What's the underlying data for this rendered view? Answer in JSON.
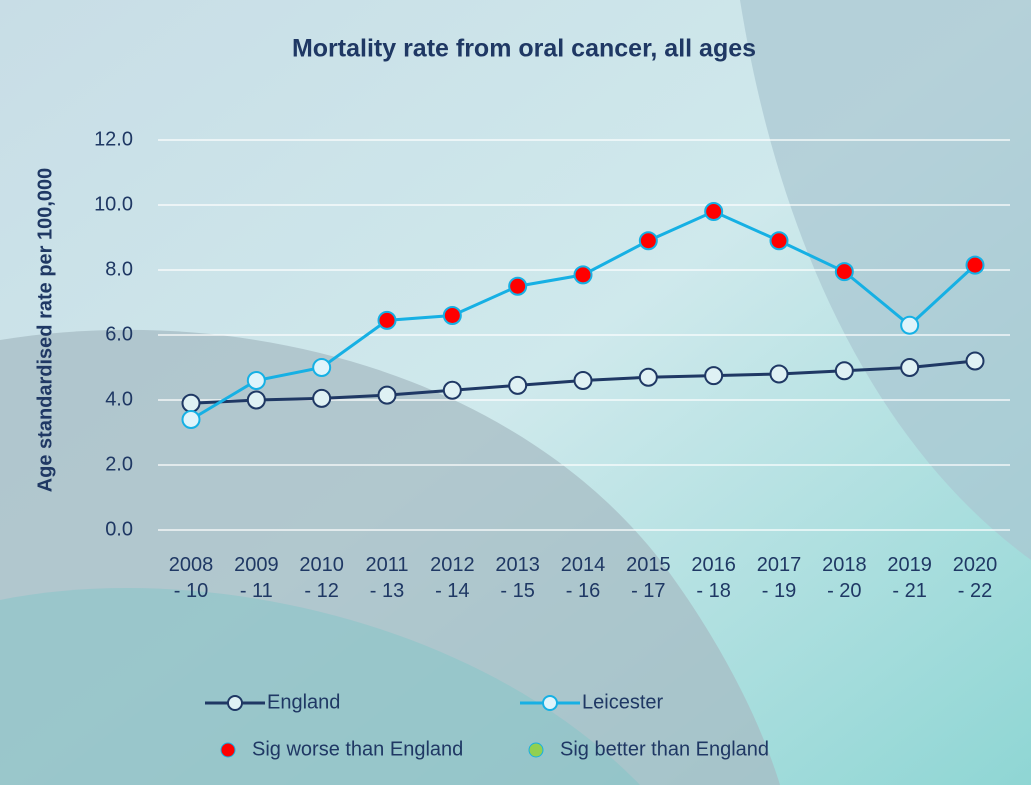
{
  "chart_data": {
    "type": "line",
    "title": "Mortality rate from oral cancer, all ages",
    "y_label": "Age standardised rate per 100,000",
    "categories": [
      "2008 - 10",
      "2009 - 11",
      "2010 - 12",
      "2011 - 13",
      "2012 - 14",
      "2013 - 15",
      "2014 - 16",
      "2015 - 17",
      "2016 - 18",
      "2017 - 19",
      "2018 - 20",
      "2019 - 21",
      "2020 - 22"
    ],
    "series": [
      {
        "name": "England",
        "color": "#1f3864",
        "marker_fill": "#dff1f4",
        "values": [
          3.9,
          4.0,
          4.05,
          4.15,
          4.3,
          4.45,
          4.6,
          4.7,
          4.75,
          4.8,
          4.9,
          5.0,
          5.2
        ]
      },
      {
        "name": "Leicester",
        "color": "#16b0e4",
        "marker_fill": "#dff4fb",
        "values": [
          3.4,
          4.6,
          5.0,
          6.45,
          6.6,
          7.5,
          7.85,
          8.9,
          9.8,
          8.9,
          7.95,
          6.3,
          8.15
        ],
        "marker_colors": [
          "#dff4fb",
          "#dff4fb",
          "#dff4fb",
          "#ff0000",
          "#ff0000",
          "#ff0000",
          "#ff0000",
          "#ff0000",
          "#ff0000",
          "#ff0000",
          "#ff0000",
          "#dff4fb",
          "#ff0000"
        ]
      }
    ],
    "markers": [
      {
        "name": "Sig worse than England",
        "color": "#ff0000"
      },
      {
        "name": "Sig better than England",
        "color": "#92d050"
      }
    ],
    "ylim": [
      0,
      12
    ],
    "yticks": [
      {
        "value": 0,
        "label": "0.0"
      },
      {
        "value": 2,
        "label": "2.0"
      },
      {
        "value": 4,
        "label": "4.0"
      },
      {
        "value": 6,
        "label": "6.0"
      },
      {
        "value": 8,
        "label": "8.0"
      },
      {
        "value": 10,
        "label": "10.0"
      },
      {
        "value": 12,
        "label": "12.0"
      }
    ],
    "grid": true
  }
}
